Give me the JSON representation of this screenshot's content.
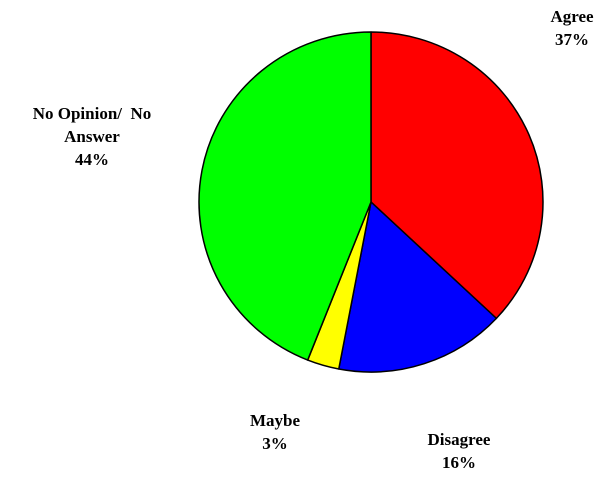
{
  "chart_data": {
    "type": "pie",
    "title": "",
    "start": "12 o'clock",
    "direction": "clockwise",
    "slices": [
      {
        "label": [
          "Agree"
        ],
        "percent_label": "37%",
        "value": 37,
        "color": "#ff0000"
      },
      {
        "label": [
          "Disagree"
        ],
        "percent_label": "16%",
        "value": 16,
        "color": "#0000ff"
      },
      {
        "label": [
          "Maybe"
        ],
        "percent_label": "3%",
        "value": 3,
        "color": "#ffff00"
      },
      {
        "label": [
          "No Opinion/  No",
          "Answer"
        ],
        "percent_label": "44%",
        "value": 44,
        "color": "#00ff00"
      }
    ],
    "outline_color": "#000000",
    "label_color": "#000000"
  }
}
